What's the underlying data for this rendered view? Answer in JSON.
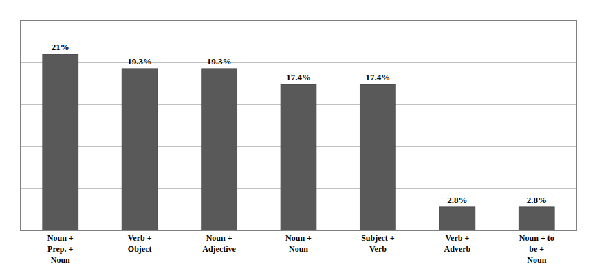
{
  "chart_data": {
    "type": "bar",
    "categories": [
      "Noun +\nPrep. +\nNoun",
      "Verb +\nObject",
      "Noun +\nAdjective",
      "Noun +\nNoun",
      "Subject +\nVerb",
      "Verb +\nAdverb",
      "Noun + to\nbe +\nNoun"
    ],
    "values": [
      21.0,
      19.3,
      19.3,
      17.4,
      17.4,
      2.8,
      2.8
    ],
    "value_labels": [
      "21%",
      "19.3%",
      "19.3%",
      "17.4%",
      "17.4%",
      "2.8%",
      "2.8%"
    ],
    "data_labels": true,
    "color": "#595959",
    "ylim": [
      0,
      25
    ],
    "yticks": [
      0,
      5,
      10,
      15,
      20,
      25
    ],
    "grid": true,
    "tick_labels": "x"
  }
}
